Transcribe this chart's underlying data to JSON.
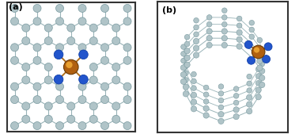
{
  "background_color": "#ffffff",
  "border_color": "#333333",
  "panel_a_label": "(a)",
  "panel_b_label": "(b)",
  "carbon_color": "#b0c4c8",
  "carbon_edge_color": "#7a9aa0",
  "nitrogen_color": "#2255cc",
  "nitrogen_edge_color": "#1040aa",
  "metal_color": "#b06010",
  "metal_highlight": "#e8a030",
  "metal_edge_color": "#6a3a05",
  "bond_color": "#9ab4b8",
  "metal_bond_color": "#b07020",
  "label_fontsize": 8,
  "fig_width": 3.78,
  "fig_height": 1.69
}
